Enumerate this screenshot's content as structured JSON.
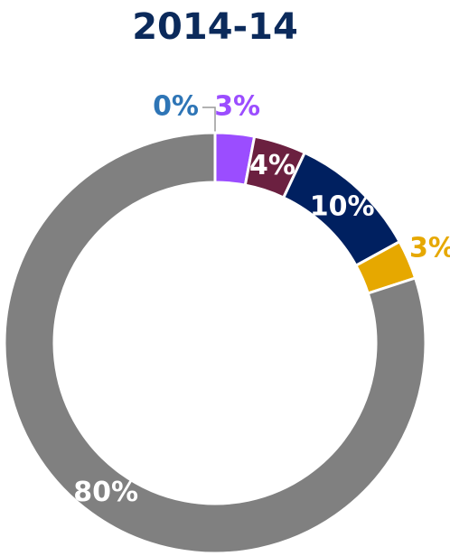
{
  "chart_data": {
    "type": "donut",
    "title": "2014-14",
    "values": [
      0,
      3,
      4,
      10,
      3,
      80
    ],
    "value_labels": [
      "0%",
      "3%",
      "4%",
      "10%",
      "3%",
      "80%"
    ],
    "colors": [
      "#2e75b6",
      "#9b4dff",
      "#6b2040",
      "#002060",
      "#e6a800",
      "#808080"
    ],
    "label_colors": [
      "#2e75b6",
      "#9b4dff",
      "#ffffff",
      "#ffffff",
      "#e6a800",
      "#ffffff"
    ]
  }
}
